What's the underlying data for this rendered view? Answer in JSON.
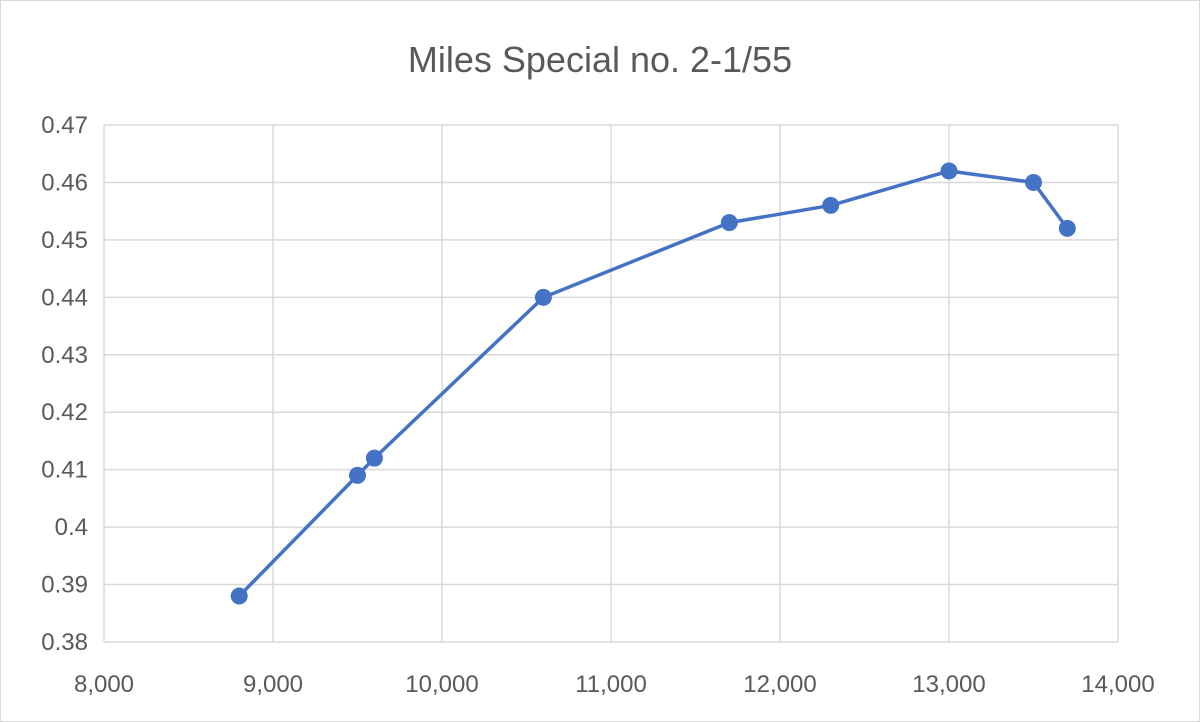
{
  "chart_data": {
    "type": "scatter",
    "title": "Miles Special no. 2-1/55",
    "xlabel": "",
    "ylabel": "",
    "xlim": [
      8000,
      14000
    ],
    "ylim": [
      0.38,
      0.47
    ],
    "x_ticks": [
      8000,
      9000,
      10000,
      11000,
      12000,
      13000,
      14000
    ],
    "x_tick_labels": [
      "8,000",
      "9,000",
      "10,000",
      "11,000",
      "12,000",
      "13,000",
      "14,000"
    ],
    "y_ticks": [
      0.38,
      0.39,
      0.4,
      0.41,
      0.42,
      0.43,
      0.44,
      0.45,
      0.46,
      0.47
    ],
    "y_tick_labels": [
      "0.38",
      "0.39",
      "0.4",
      "0.41",
      "0.42",
      "0.43",
      "0.44",
      "0.45",
      "0.46",
      "0.47"
    ],
    "grid": true,
    "legend": "none",
    "series": [
      {
        "color": "#4472c4",
        "marker": "circle",
        "line": "straight",
        "x": [
          8800,
          9500,
          9600,
          10600,
          11700,
          12300,
          13000,
          13500,
          13700
        ],
        "y": [
          0.388,
          0.409,
          0.412,
          0.44,
          0.453,
          0.456,
          0.462,
          0.46,
          0.452
        ]
      }
    ]
  }
}
